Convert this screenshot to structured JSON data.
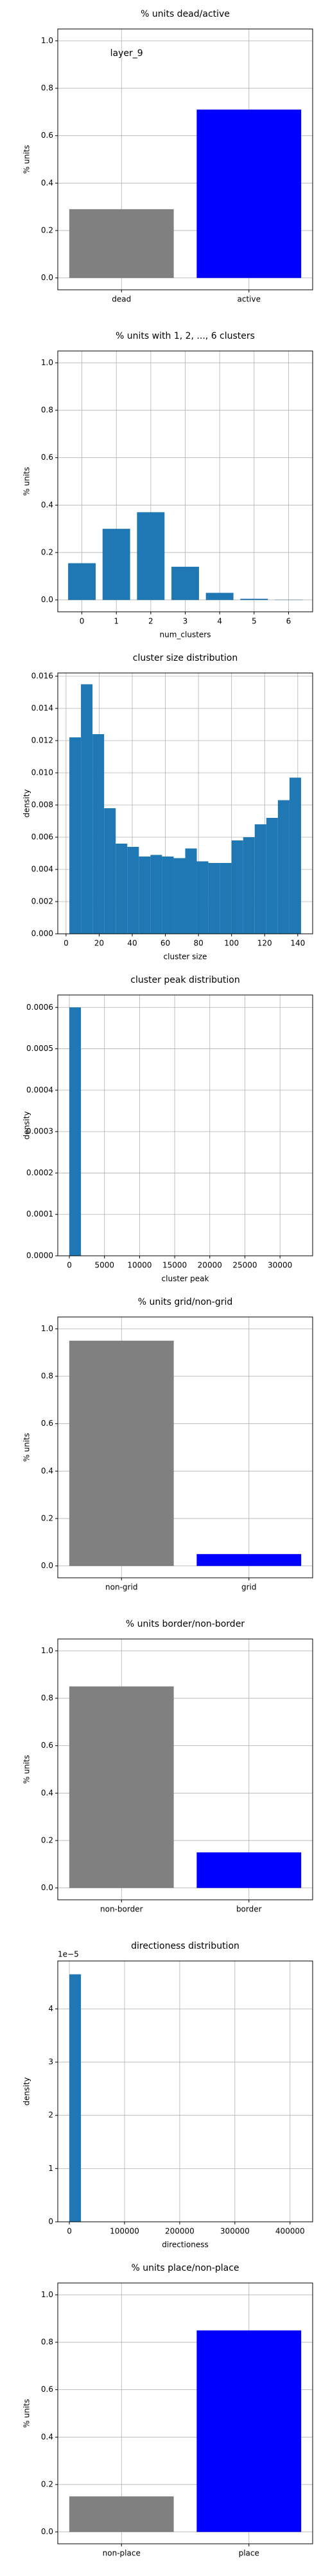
{
  "chart_data": [
    {
      "type": "bar",
      "title": "% units dead/active",
      "annotation": "layer_9",
      "ylabel": "% units",
      "categories": [
        "dead",
        "active"
      ],
      "values": [
        0.29,
        0.71
      ],
      "colors": [
        "#808080",
        "#0000ff"
      ],
      "ylim": [
        -0.05,
        1.05
      ],
      "yticks": [
        {
          "value": 0,
          "label": "0.0"
        },
        0.2,
        0.4,
        0.6,
        0.8,
        {
          "value": 1,
          "label": "1.0"
        }
      ],
      "grid": true
    },
    {
      "type": "bar",
      "title": "% units with 1, 2, ..., 6 clusters",
      "xlabel": "num_clusters",
      "ylabel": "% units",
      "x": [
        0,
        1,
        2,
        3,
        4,
        5,
        6
      ],
      "values": [
        0.155,
        0.3,
        0.37,
        0.14,
        0.03,
        0.005,
        0.001
      ],
      "color": "#1f77b4",
      "xlim": [
        -0.7,
        6.7
      ],
      "xticks": [
        0,
        1,
        2,
        3,
        4,
        5,
        6
      ],
      "ylim": [
        -0.05,
        1.05
      ],
      "yticks": [
        {
          "value": 0,
          "label": "0.0"
        },
        0.2,
        0.4,
        0.6,
        0.8,
        {
          "value": 1,
          "label": "1.0"
        }
      ],
      "grid": true
    },
    {
      "type": "histogram",
      "title": "cluster size distribution",
      "xlabel": "cluster size",
      "ylabel": "density",
      "bins": [
        2,
        9,
        16,
        23,
        30,
        37,
        44,
        51,
        58,
        65,
        72,
        79,
        86,
        93,
        100,
        107,
        114,
        121,
        128,
        135,
        142
      ],
      "values": [
        0.0122,
        0.0155,
        0.0124,
        0.0078,
        0.0056,
        0.0054,
        0.0048,
        0.0049,
        0.0048,
        0.0047,
        0.0053,
        0.0045,
        0.0044,
        0.0044,
        0.0058,
        0.006,
        0.0068,
        0.0072,
        0.0083,
        0.0097
      ],
      "color": "#1f77b4",
      "xlim": [
        -5,
        149
      ],
      "xticks": [
        0,
        20,
        40,
        60,
        80,
        100,
        120,
        140
      ],
      "ylim": [
        0,
        0.0162
      ],
      "yticks": [
        {
          "value": 0,
          "label": "0.000"
        },
        0.002,
        0.004,
        0.006,
        0.008,
        {
          "value": 0.01,
          "label": "0.010"
        },
        0.012,
        0.014,
        0.016
      ],
      "grid": true
    },
    {
      "type": "histogram",
      "title": "cluster peak distribution",
      "xlabel": "cluster peak",
      "ylabel": "density",
      "bins": [
        0,
        1650,
        3300,
        4950,
        6600,
        8250,
        9900,
        11550,
        13200,
        14850,
        16500,
        18150,
        19800,
        21450,
        23100,
        24750,
        26400,
        28050,
        29700,
        31350,
        33000
      ],
      "values": [
        0.0006,
        0,
        0,
        0,
        0,
        0,
        0,
        0,
        0,
        0,
        0,
        0,
        0,
        0,
        0,
        0,
        0,
        0,
        0,
        0
      ],
      "color": "#1f77b4",
      "xlim": [
        -1650,
        34650
      ],
      "xticks": [
        0,
        5000,
        10000,
        15000,
        20000,
        25000,
        30000
      ],
      "ylim": [
        0,
        0.00063
      ],
      "yticks": [
        {
          "value": 0,
          "label": "0.0000"
        },
        0.0001,
        0.0002,
        0.0003,
        0.0004,
        0.0005,
        0.0006
      ],
      "grid": true
    },
    {
      "type": "bar",
      "title": "% units grid/non-grid",
      "ylabel": "% units",
      "categories": [
        "non-grid",
        "grid"
      ],
      "values": [
        0.95,
        0.05
      ],
      "colors": [
        "#808080",
        "#0000ff"
      ],
      "ylim": [
        -0.05,
        1.05
      ],
      "yticks": [
        {
          "value": 0,
          "label": "0.0"
        },
        0.2,
        0.4,
        0.6,
        0.8,
        {
          "value": 1,
          "label": "1.0"
        }
      ],
      "grid": true
    },
    {
      "type": "bar",
      "title": "% units border/non-border",
      "ylabel": "% units",
      "categories": [
        "non-border",
        "border"
      ],
      "values": [
        0.85,
        0.15
      ],
      "colors": [
        "#808080",
        "#0000ff"
      ],
      "ylim": [
        -0.05,
        1.05
      ],
      "yticks": [
        {
          "value": 0,
          "label": "0.0"
        },
        0.2,
        0.4,
        0.6,
        0.8,
        {
          "value": 1,
          "label": "1.0"
        }
      ],
      "grid": true
    },
    {
      "type": "histogram",
      "title": "directioness distribution",
      "xlabel": "directioness",
      "ylabel": "density",
      "y_offset_label": "1e−5",
      "bins": [
        0,
        21000,
        42000,
        63000,
        84000,
        105000,
        126000,
        147000,
        168000,
        189000,
        210000,
        231000,
        252000,
        273000,
        294000,
        315000,
        336000,
        357000,
        378000,
        399000,
        420000
      ],
      "values": [
        4.65e-05,
        0,
        0,
        0,
        0,
        0,
        0,
        0,
        0,
        0,
        0,
        0,
        0,
        0,
        0,
        0,
        0,
        0,
        0,
        0
      ],
      "color": "#1f77b4",
      "xlim": [
        -21000,
        441000
      ],
      "xticks": [
        0,
        100000,
        200000,
        300000,
        400000
      ],
      "ylim": [
        0,
        4.9e-05
      ],
      "yticks": [
        {
          "value": 0,
          "label": "0"
        },
        {
          "value": 1e-05,
          "label": "1"
        },
        {
          "value": 2e-05,
          "label": "2"
        },
        {
          "value": 3e-05,
          "label": "3"
        },
        {
          "value": 4e-05,
          "label": "4"
        }
      ],
      "grid": true
    },
    {
      "type": "bar",
      "title": "% units place/non-place",
      "ylabel": "% units",
      "categories": [
        "non-place",
        "place"
      ],
      "values": [
        0.15,
        0.85
      ],
      "colors": [
        "#808080",
        "#0000ff"
      ],
      "ylim": [
        -0.05,
        1.05
      ],
      "yticks": [
        {
          "value": 0,
          "label": "0.0"
        },
        0.2,
        0.4,
        0.6,
        0.8,
        {
          "value": 1,
          "label": "1.0"
        }
      ],
      "grid": true
    }
  ]
}
